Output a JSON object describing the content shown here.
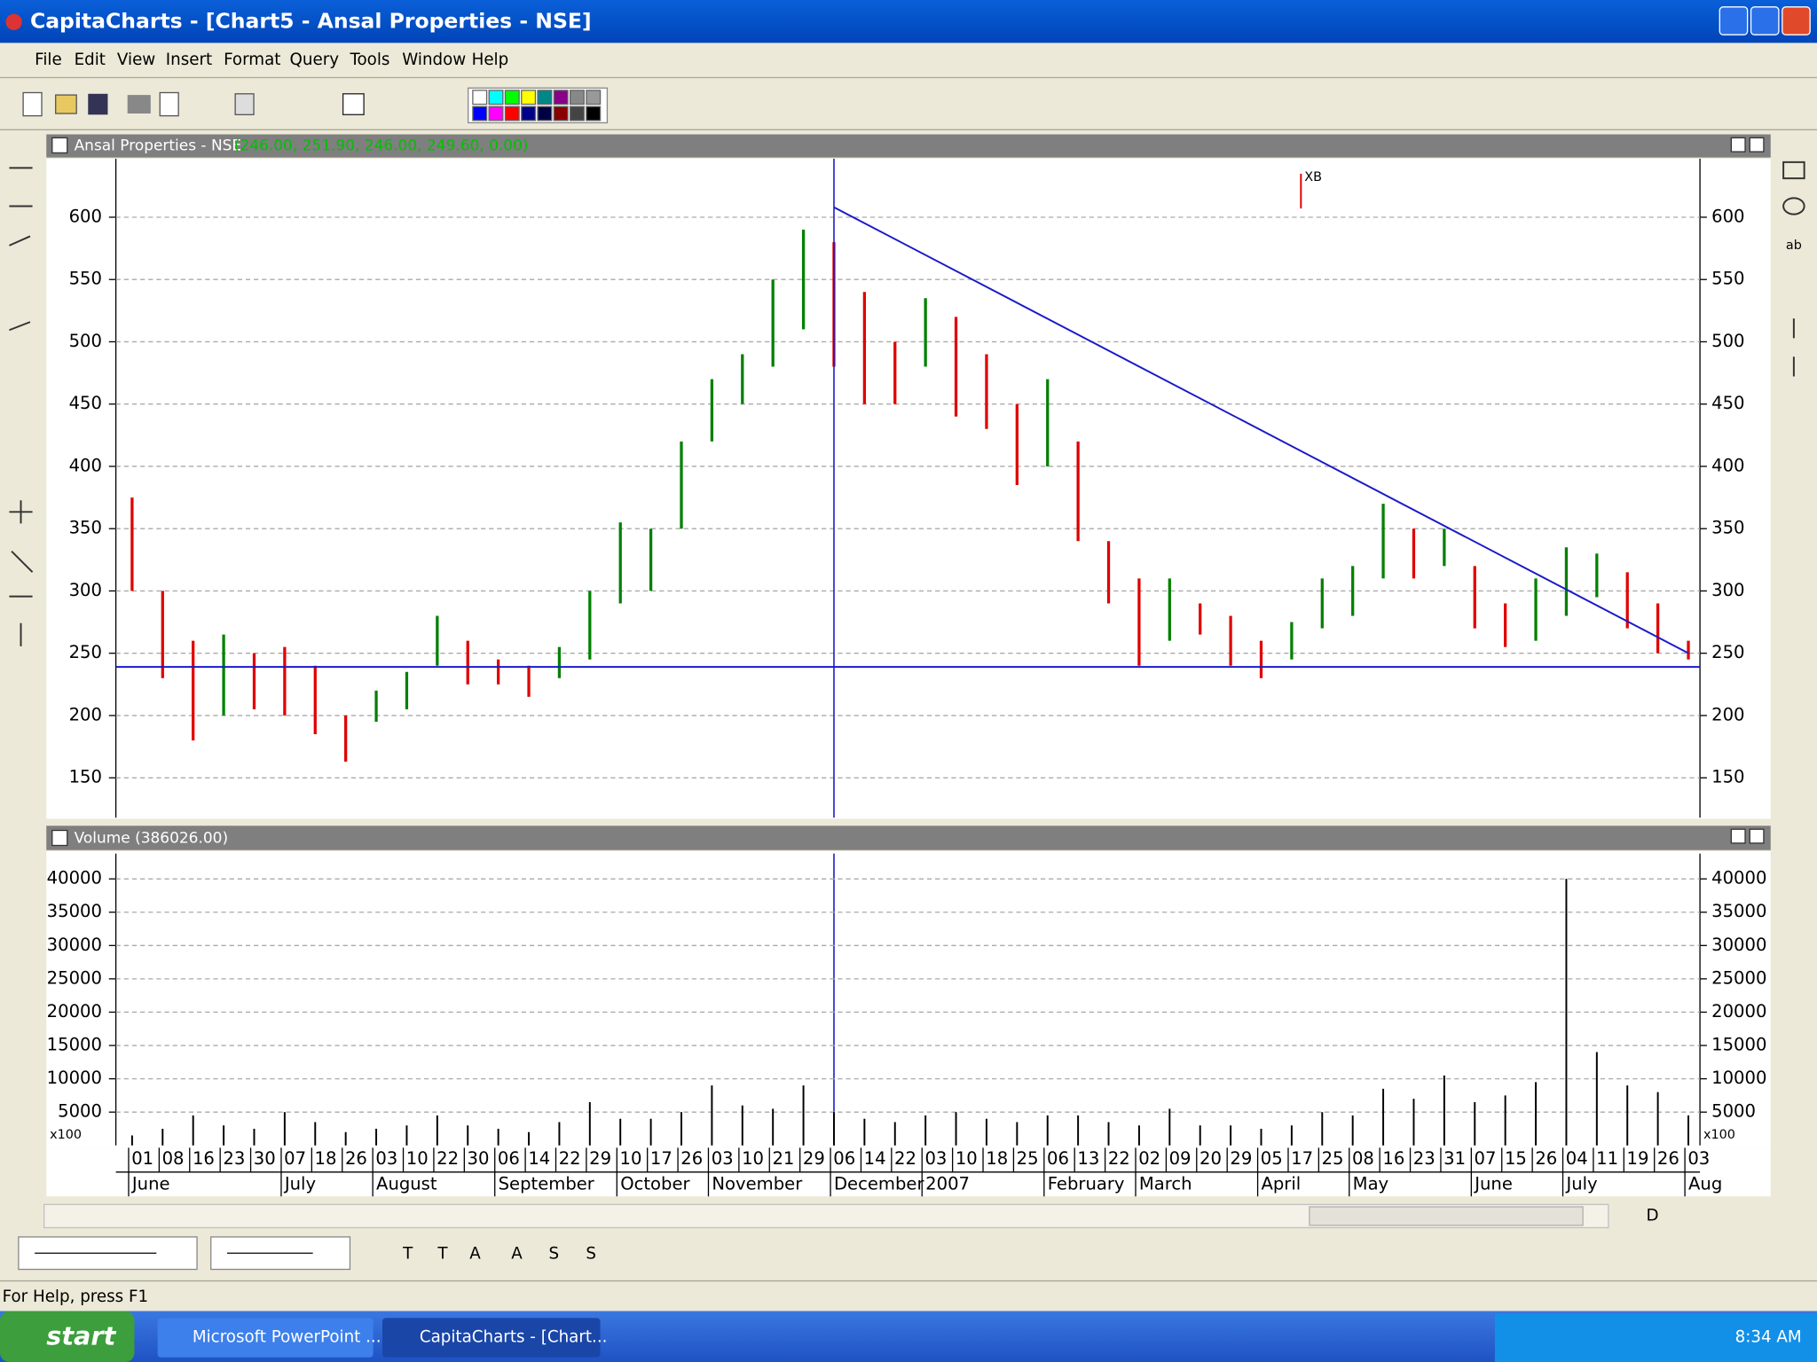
{
  "window": {
    "title": "CapitaCharts - [Chart5 - Ansal Properties - NSE]"
  },
  "menu": [
    "File",
    "Edit",
    "View",
    "Insert",
    "Format",
    "Query",
    "Tools",
    "Window",
    "Help"
  ],
  "chart_data": [
    {
      "type": "ohlc",
      "title": "Ansal Properties - NSE",
      "subtitle": "(246.00, 251.90, 246.00, 249.60, 0.00)",
      "categories": [
        "01",
        "08",
        "16",
        "23",
        "30",
        "07",
        "18",
        "26",
        "03",
        "10",
        "22",
        "30",
        "06",
        "14",
        "22",
        "29",
        "10",
        "17",
        "26",
        "03",
        "10",
        "21",
        "29",
        "06",
        "14",
        "22",
        "03",
        "10",
        "18",
        "25",
        "06",
        "13",
        "22",
        "02",
        "09",
        "20",
        "29",
        "05",
        "17",
        "25",
        "08",
        "16",
        "23",
        "31",
        "07",
        "15",
        "26",
        "04",
        "11",
        "19",
        "26",
        "03"
      ],
      "month_labels": [
        "June",
        null,
        null,
        null,
        null,
        "July",
        null,
        null,
        "August",
        null,
        null,
        null,
        "September",
        null,
        null,
        null,
        "October",
        null,
        null,
        "November",
        null,
        null,
        null,
        "December",
        null,
        null,
        "2007",
        null,
        null,
        null,
        "February",
        null,
        null,
        "March",
        null,
        null,
        null,
        "April",
        null,
        null,
        "May",
        null,
        null,
        null,
        "June",
        null,
        null,
        "July",
        null,
        null,
        null,
        "Aug"
      ],
      "high": [
        375,
        300,
        260,
        265,
        250,
        255,
        240,
        200,
        220,
        235,
        280,
        260,
        245,
        240,
        255,
        300,
        355,
        350,
        420,
        470,
        490,
        550,
        590,
        580,
        540,
        500,
        535,
        520,
        490,
        450,
        470,
        420,
        340,
        310,
        310,
        290,
        280,
        260,
        275,
        310,
        320,
        370,
        350,
        350,
        320,
        290,
        310,
        335,
        330,
        315,
        290,
        260
      ],
      "low": [
        300,
        230,
        180,
        200,
        205,
        200,
        185,
        163,
        195,
        205,
        240,
        225,
        225,
        215,
        230,
        245,
        290,
        300,
        350,
        420,
        450,
        480,
        510,
        480,
        450,
        450,
        480,
        440,
        430,
        385,
        400,
        340,
        290,
        240,
        260,
        265,
        240,
        230,
        245,
        270,
        280,
        310,
        310,
        320,
        270,
        255,
        260,
        280,
        295,
        270,
        250,
        245
      ],
      "ylim": [
        118,
        647
      ],
      "yticks": [
        150,
        200,
        250,
        300,
        350,
        400,
        450,
        500,
        550,
        600
      ],
      "grid": true,
      "support_level": 239,
      "trend_line": [
        608,
        250
      ],
      "marker_label": "XB"
    },
    {
      "type": "bar",
      "title": "Volume (386026.00)",
      "unit_label": "x100",
      "values": [
        1500,
        2500,
        4500,
        3000,
        2500,
        5000,
        3500,
        2000,
        2500,
        3000,
        4500,
        3000,
        2500,
        2000,
        3500,
        6500,
        4000,
        4000,
        5000,
        9000,
        6000,
        5500,
        9000,
        5000,
        4000,
        3500,
        4500,
        5000,
        4000,
        3500,
        4500,
        4500,
        3500,
        3000,
        5500,
        3000,
        3000,
        2500,
        3000,
        5000,
        4500,
        8500,
        7000,
        10500,
        6500,
        7500,
        9500,
        40000,
        14000,
        9000,
        8000,
        4500
      ],
      "color": "#000000",
      "ylim": [
        0,
        43800
      ],
      "yticks": [
        5000,
        10000,
        15000,
        20000,
        25000,
        30000,
        35000,
        40000
      ],
      "grid": true
    }
  ],
  "toolbar_nav": [
    "T",
    "T",
    "A",
    "A",
    "S",
    "S"
  ],
  "scroll_label": "D",
  "status": "For Help, press F1",
  "taskbar": {
    "start": "start",
    "tasks": [
      "Microsoft PowerPoint ...",
      "CapitaCharts - [Chart..."
    ],
    "clock": "8:34 AM"
  }
}
